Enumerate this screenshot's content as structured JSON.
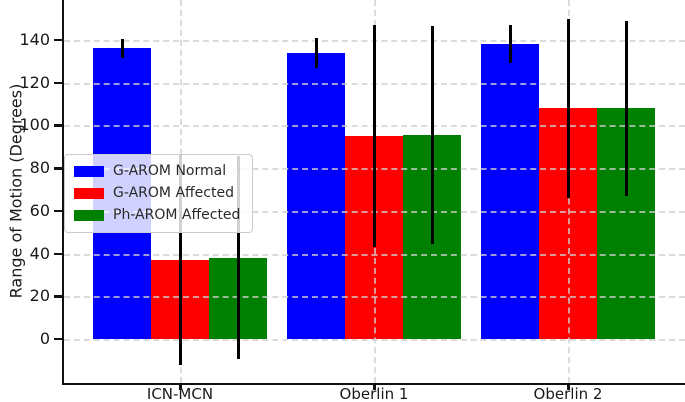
{
  "chart_data": {
    "type": "bar",
    "title": "",
    "xlabel": "",
    "ylabel": "Range of Motion (Degrees)",
    "categories": [
      "ICN-MCN",
      "Oberlin 1",
      "Oberlin 2"
    ],
    "series": [
      {
        "name": "G-AROM Normal",
        "color": "#0000ff",
        "values": [
          136,
          134,
          138
        ],
        "errors": [
          4.5,
          7,
          9
        ]
      },
      {
        "name": "G-AROM Affected",
        "color": "#ff0000",
        "values": [
          37,
          95,
          108
        ],
        "errors": [
          49,
          52,
          42
        ]
      },
      {
        "name": "Ph-AROM Affected",
        "color": "#008000",
        "values": [
          38,
          95.5,
          108
        ],
        "errors": [
          47.5,
          51,
          41
        ]
      }
    ],
    "yticks": [
      0,
      20,
      40,
      60,
      80,
      100,
      120,
      140
    ],
    "ylim": [
      -20.6,
      158.7
    ],
    "grid": true,
    "grid_style": "dashed",
    "legend_position": "upper-left-inside",
    "error_bar_color": "#000000",
    "background_color": "#ffffff"
  }
}
